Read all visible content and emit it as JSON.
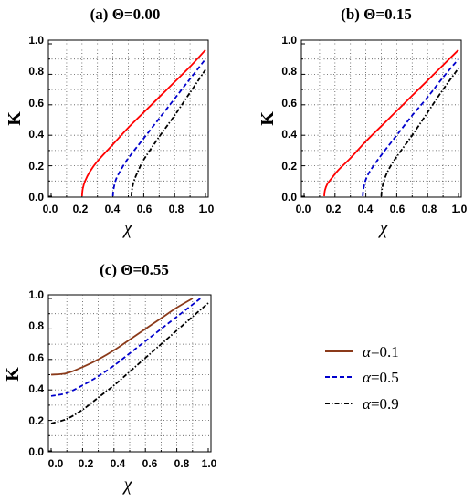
{
  "colors": {
    "alpha_0_1_panels_ab": "#ff0000",
    "alpha_0_1_panel_c": "#8b3a1a",
    "alpha_0_5": "#0000cc",
    "alpha_0_9": "#000000"
  },
  "legend": {
    "placement": "right-of-panel-c",
    "entries": [
      {
        "label": "α=0.1",
        "sym": "α",
        "val": "=0.1",
        "style": "solid",
        "color": "#8b3a1a"
      },
      {
        "label": "α=0.5",
        "sym": "α",
        "val": "=0.5",
        "style": "dashed",
        "color": "#0000cc"
      },
      {
        "label": "α=0.9",
        "sym": "α",
        "val": "=0.9",
        "style": "dashdot",
        "color": "#000000"
      }
    ]
  },
  "chart_data": [
    {
      "type": "line",
      "title": "(a)   Θ=0.00",
      "xlabel": "χ",
      "ylabel": "K",
      "xlim": [
        0,
        1
      ],
      "ylim": [
        0,
        1
      ],
      "xticks": [
        "0.0",
        "0.2",
        "0.4",
        "0.6",
        "0.8",
        "1.0"
      ],
      "yticks": [
        "0.0",
        "0.2",
        "0.4",
        "0.6",
        "0.8",
        "1.0"
      ],
      "grid": true,
      "series": [
        {
          "style": "solid",
          "color": "#ff0000",
          "x": [
            0.2,
            0.205,
            0.22,
            0.25,
            0.3,
            0.4,
            0.5,
            0.6,
            0.7,
            0.8,
            0.9,
            1.0
          ],
          "y": [
            0.0,
            0.05,
            0.1,
            0.16,
            0.23,
            0.34,
            0.45,
            0.55,
            0.65,
            0.75,
            0.85,
            0.96
          ]
        },
        {
          "style": "dashed",
          "color": "#0000cc",
          "x": [
            0.4,
            0.405,
            0.42,
            0.45,
            0.5,
            0.6,
            0.7,
            0.8,
            0.9,
            1.0
          ],
          "y": [
            0.0,
            0.05,
            0.11,
            0.17,
            0.25,
            0.38,
            0.51,
            0.64,
            0.77,
            0.9
          ]
        },
        {
          "style": "dashdot",
          "color": "#000000",
          "x": [
            0.52,
            0.525,
            0.54,
            0.57,
            0.6,
            0.7,
            0.8,
            0.9,
            1.0
          ],
          "y": [
            0.0,
            0.05,
            0.11,
            0.18,
            0.24,
            0.39,
            0.53,
            0.68,
            0.83
          ]
        }
      ]
    },
    {
      "type": "line",
      "title": "(b)   Θ=0.15",
      "xlabel": "χ",
      "ylabel": "K",
      "xlim": [
        0,
        1
      ],
      "ylim": [
        0,
        1
      ],
      "xticks": [
        "0.0",
        "0.2",
        "0.4",
        "0.6",
        "0.8",
        "1.0"
      ],
      "yticks": [
        "0.0",
        "0.2",
        "0.4",
        "0.6",
        "0.8",
        "1.0"
      ],
      "grid": true,
      "series": [
        {
          "style": "solid",
          "color": "#ff0000",
          "x": [
            0.13,
            0.135,
            0.15,
            0.18,
            0.22,
            0.3,
            0.4,
            0.5,
            0.6,
            0.7,
            0.8,
            0.9,
            1.0
          ],
          "y": [
            0.0,
            0.04,
            0.08,
            0.12,
            0.17,
            0.25,
            0.36,
            0.46,
            0.56,
            0.66,
            0.76,
            0.86,
            0.96
          ]
        },
        {
          "style": "dashed",
          "color": "#0000cc",
          "x": [
            0.38,
            0.385,
            0.4,
            0.43,
            0.5,
            0.6,
            0.7,
            0.8,
            0.9,
            1.0
          ],
          "y": [
            0.0,
            0.05,
            0.11,
            0.17,
            0.27,
            0.4,
            0.53,
            0.65,
            0.78,
            0.9
          ]
        },
        {
          "style": "dashdot",
          "color": "#000000",
          "x": [
            0.5,
            0.505,
            0.52,
            0.55,
            0.6,
            0.7,
            0.8,
            0.9,
            1.0
          ],
          "y": [
            0.0,
            0.05,
            0.11,
            0.18,
            0.26,
            0.4,
            0.55,
            0.7,
            0.84
          ]
        }
      ]
    },
    {
      "type": "line",
      "title": "(c)   Θ=0.55",
      "xlabel": "χ",
      "ylabel": "K",
      "xlim": [
        0,
        1
      ],
      "ylim": [
        0,
        1
      ],
      "xticks": [
        "0.0",
        "0.2",
        "0.4",
        "0.6",
        "0.8",
        "1.0"
      ],
      "yticks": [
        "0.0",
        "0.2",
        "0.4",
        "0.6",
        "0.8",
        "1.0"
      ],
      "grid": true,
      "series": [
        {
          "name": "α=0.1",
          "style": "solid",
          "color": "#8b3a1a",
          "x": [
            0.0,
            0.1,
            0.2,
            0.3,
            0.4,
            0.5,
            0.6,
            0.7,
            0.8,
            0.9
          ],
          "y": [
            0.5,
            0.51,
            0.55,
            0.6,
            0.66,
            0.73,
            0.8,
            0.87,
            0.94,
            1.0
          ]
        },
        {
          "name": "α=0.5",
          "style": "dashed",
          "color": "#0000cc",
          "x": [
            0.0,
            0.1,
            0.2,
            0.3,
            0.4,
            0.5,
            0.6,
            0.7,
            0.8,
            0.9,
            0.95
          ],
          "y": [
            0.36,
            0.38,
            0.43,
            0.49,
            0.56,
            0.64,
            0.72,
            0.8,
            0.88,
            0.96,
            1.0
          ]
        },
        {
          "name": "α=0.9",
          "style": "dashdot",
          "color": "#000000",
          "x": [
            0.0,
            0.1,
            0.2,
            0.3,
            0.4,
            0.5,
            0.6,
            0.7,
            0.8,
            0.9,
            1.0
          ],
          "y": [
            0.18,
            0.21,
            0.27,
            0.35,
            0.43,
            0.52,
            0.61,
            0.7,
            0.79,
            0.88,
            0.97
          ]
        }
      ]
    }
  ]
}
